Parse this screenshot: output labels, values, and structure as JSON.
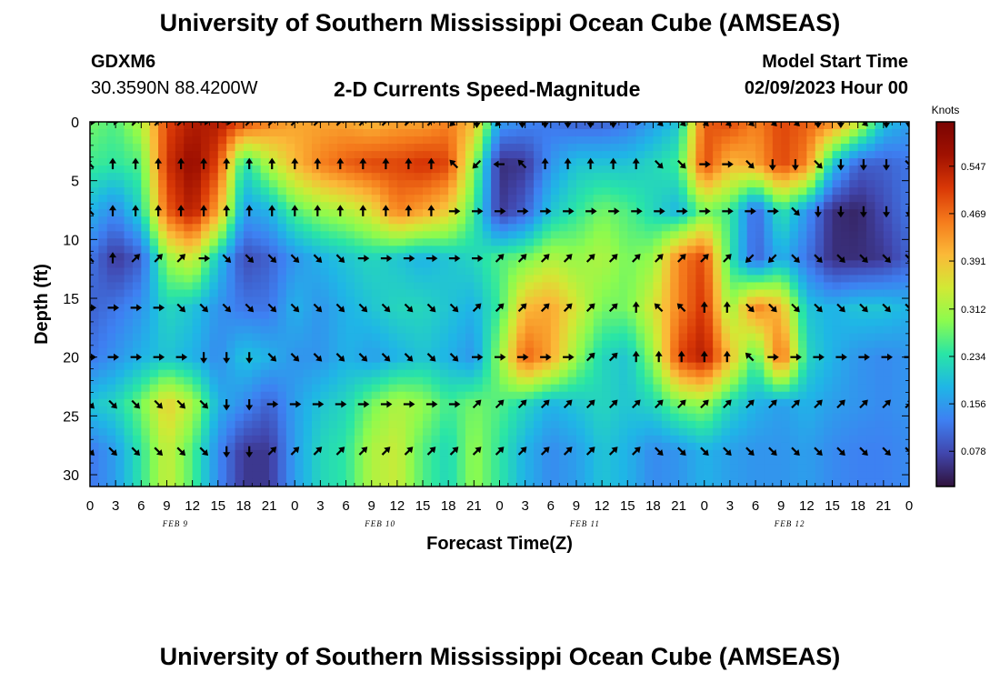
{
  "header": {
    "title": "University of Southern Mississippi Ocean Cube (AMSEAS)",
    "station_id": "GDXM6",
    "station_coords": "30.3590N  88.4200W",
    "subtitle": "2-D Currents Speed-Magnitude",
    "model_start_label": "Model Start Time",
    "model_start_value": "02/09/2023 Hour 00"
  },
  "footer": {
    "title": "University of Southern Mississippi Ocean Cube (AMSEAS)"
  },
  "colors": {
    "scale": [
      "#30123b",
      "#4146ad",
      "#3e80f2",
      "#1fb6e6",
      "#29e5a6",
      "#8cfb4e",
      "#d2e935",
      "#fbb938",
      "#f57b1c",
      "#d93806",
      "#a01101",
      "#7a0403"
    ],
    "arrow": "#000000"
  },
  "chart_data": {
    "type": "heatmap",
    "title": "2-D Currents Speed-Magnitude",
    "xlabel": "Forecast Time(Z)",
    "ylabel": "Depth (ft)",
    "x_ticks": [
      "0",
      "3",
      "6",
      "9",
      "12",
      "15",
      "18",
      "21",
      "0",
      "3",
      "6",
      "9",
      "12",
      "15",
      "18",
      "21",
      "0",
      "3",
      "6",
      "9",
      "12",
      "15",
      "18",
      "21",
      "0",
      "3",
      "6",
      "9",
      "12",
      "15",
      "18",
      "21",
      "0"
    ],
    "day_labels": [
      "FEB 9",
      "FEB 10",
      "FEB 11",
      "FEB 12"
    ],
    "xlim_hours": [
      0,
      96
    ],
    "ylim_ft": [
      0,
      31
    ],
    "y_ticks": [
      0,
      5,
      10,
      15,
      20,
      25,
      30
    ],
    "colorbar": {
      "unit": "Knots",
      "range": [
        0.02,
        0.62
      ],
      "ticks": [
        "0.547",
        "0.469",
        "0.391",
        "0.312",
        "0.234",
        "0.156",
        "0.078"
      ]
    },
    "depths_ft": [
      0,
      3.6,
      7.6,
      11.6,
      15.8,
      20,
      24,
      28
    ],
    "times_hours": [
      0,
      3,
      6,
      9,
      12,
      15,
      18,
      21,
      24,
      27,
      30,
      33,
      36,
      39,
      42,
      45,
      48,
      51,
      54,
      57,
      60,
      63,
      66,
      69,
      72,
      75,
      78,
      81,
      84,
      87,
      90,
      93,
      96
    ],
    "speed_knots": [
      [
        0.28,
        0.26,
        0.32,
        0.5,
        0.55,
        0.55,
        0.5,
        0.45,
        0.42,
        0.42,
        0.42,
        0.4,
        0.42,
        0.42,
        0.45,
        0.4,
        0.16,
        0.14,
        0.12,
        0.1,
        0.1,
        0.12,
        0.16,
        0.2,
        0.48,
        0.5,
        0.45,
        0.5,
        0.48,
        0.45,
        0.35,
        0.2,
        0.16
      ],
      [
        0.25,
        0.24,
        0.26,
        0.52,
        0.58,
        0.5,
        0.22,
        0.32,
        0.4,
        0.45,
        0.48,
        0.5,
        0.5,
        0.52,
        0.5,
        0.3,
        0.05,
        0.06,
        0.15,
        0.2,
        0.2,
        0.2,
        0.22,
        0.25,
        0.5,
        0.4,
        0.42,
        0.5,
        0.45,
        0.2,
        0.1,
        0.1,
        0.12
      ],
      [
        0.18,
        0.14,
        0.22,
        0.48,
        0.55,
        0.42,
        0.16,
        0.18,
        0.26,
        0.3,
        0.32,
        0.36,
        0.45,
        0.42,
        0.38,
        0.25,
        0.06,
        0.1,
        0.2,
        0.24,
        0.28,
        0.26,
        0.22,
        0.18,
        0.28,
        0.25,
        0.1,
        0.24,
        0.15,
        0.05,
        0.04,
        0.08,
        0.12
      ],
      [
        0.12,
        0.06,
        0.1,
        0.3,
        0.35,
        0.2,
        0.08,
        0.1,
        0.15,
        0.18,
        0.2,
        0.22,
        0.2,
        0.18,
        0.2,
        0.22,
        0.26,
        0.28,
        0.32,
        0.3,
        0.32,
        0.28,
        0.3,
        0.45,
        0.5,
        0.24,
        0.1,
        0.18,
        0.12,
        0.05,
        0.05,
        0.06,
        0.1
      ],
      [
        0.1,
        0.12,
        0.15,
        0.22,
        0.2,
        0.15,
        0.12,
        0.12,
        0.18,
        0.15,
        0.18,
        0.2,
        0.22,
        0.22,
        0.2,
        0.18,
        0.25,
        0.4,
        0.42,
        0.35,
        0.28,
        0.28,
        0.35,
        0.45,
        0.52,
        0.3,
        0.45,
        0.4,
        0.2,
        0.18,
        0.2,
        0.2,
        0.18
      ],
      [
        0.12,
        0.15,
        0.18,
        0.2,
        0.18,
        0.14,
        0.2,
        0.18,
        0.15,
        0.15,
        0.18,
        0.16,
        0.18,
        0.2,
        0.18,
        0.15,
        0.3,
        0.48,
        0.42,
        0.3,
        0.22,
        0.2,
        0.3,
        0.5,
        0.55,
        0.4,
        0.25,
        0.48,
        0.22,
        0.18,
        0.15,
        0.14,
        0.15
      ],
      [
        0.2,
        0.22,
        0.28,
        0.38,
        0.32,
        0.18,
        0.14,
        0.1,
        0.16,
        0.2,
        0.22,
        0.28,
        0.32,
        0.3,
        0.25,
        0.28,
        0.26,
        0.22,
        0.18,
        0.2,
        0.22,
        0.2,
        0.22,
        0.28,
        0.3,
        0.22,
        0.18,
        0.16,
        0.18,
        0.16,
        0.15,
        0.14,
        0.15
      ],
      [
        0.12,
        0.16,
        0.24,
        0.34,
        0.26,
        0.14,
        0.06,
        0.06,
        0.16,
        0.22,
        0.24,
        0.32,
        0.34,
        0.26,
        0.22,
        0.3,
        0.24,
        0.18,
        0.14,
        0.16,
        0.2,
        0.18,
        0.14,
        0.15,
        0.18,
        0.16,
        0.15,
        0.15,
        0.16,
        0.14,
        0.13,
        0.13,
        0.14
      ]
    ],
    "direction_deg": [
      [
        90,
        90,
        45,
        45,
        45,
        90,
        90,
        45,
        45,
        45,
        45,
        45,
        45,
        45,
        45,
        45,
        225,
        180,
        225,
        180,
        180,
        180,
        180,
        180,
        90,
        135,
        135,
        135,
        135,
        135,
        135,
        135,
        180,
        180,
        135,
        180,
        180
      ],
      [
        315,
        0,
        0,
        0,
        0,
        0,
        0,
        0,
        0,
        0,
        0,
        0,
        0,
        0,
        0,
        0,
        315,
        225,
        270,
        315,
        0,
        0,
        0,
        0,
        0,
        135,
        135,
        90,
        90,
        135,
        180,
        180,
        135,
        180,
        180,
        180,
        135
      ],
      [
        315,
        0,
        0,
        0,
        0,
        0,
        0,
        0,
        0,
        0,
        0,
        0,
        0,
        0,
        0,
        0,
        90,
        90,
        90,
        90,
        90,
        90,
        90,
        90,
        90,
        90,
        90,
        90,
        90,
        90,
        90,
        135,
        180,
        180,
        180,
        180,
        180
      ],
      [
        315,
        0,
        45,
        45,
        45,
        90,
        135,
        135,
        135,
        135,
        135,
        135,
        90,
        90,
        90,
        90,
        90,
        90,
        45,
        45,
        45,
        45,
        45,
        45,
        45,
        45,
        45,
        45,
        45,
        225,
        225,
        135,
        135,
        135,
        135,
        135,
        135
      ],
      [
        90,
        90,
        90,
        90,
        135,
        135,
        135,
        135,
        135,
        135,
        135,
        135,
        135,
        135,
        135,
        135,
        135,
        45,
        45,
        45,
        45,
        45,
        45,
        45,
        0,
        315,
        315,
        0,
        0,
        135,
        135,
        135,
        135,
        135,
        135,
        135,
        135
      ],
      [
        90,
        90,
        90,
        90,
        90,
        180,
        180,
        180,
        135,
        135,
        135,
        135,
        135,
        135,
        135,
        135,
        135,
        90,
        90,
        90,
        90,
        90,
        45,
        45,
        0,
        0,
        0,
        0,
        0,
        315,
        90,
        90,
        90,
        90,
        90,
        90,
        90
      ],
      [
        135,
        135,
        135,
        135,
        135,
        135,
        180,
        180,
        90,
        90,
        90,
        90,
        90,
        90,
        90,
        90,
        90,
        45,
        45,
        45,
        45,
        45,
        45,
        45,
        45,
        45,
        45,
        45,
        45,
        45,
        45,
        45,
        45,
        45,
        45,
        45,
        45
      ],
      [
        135,
        135,
        135,
        135,
        135,
        135,
        180,
        180,
        45,
        45,
        45,
        45,
        45,
        45,
        45,
        45,
        45,
        45,
        45,
        45,
        45,
        45,
        45,
        45,
        45,
        135,
        135,
        135,
        135,
        135,
        135,
        135,
        135,
        135,
        135,
        135,
        135
      ]
    ]
  }
}
